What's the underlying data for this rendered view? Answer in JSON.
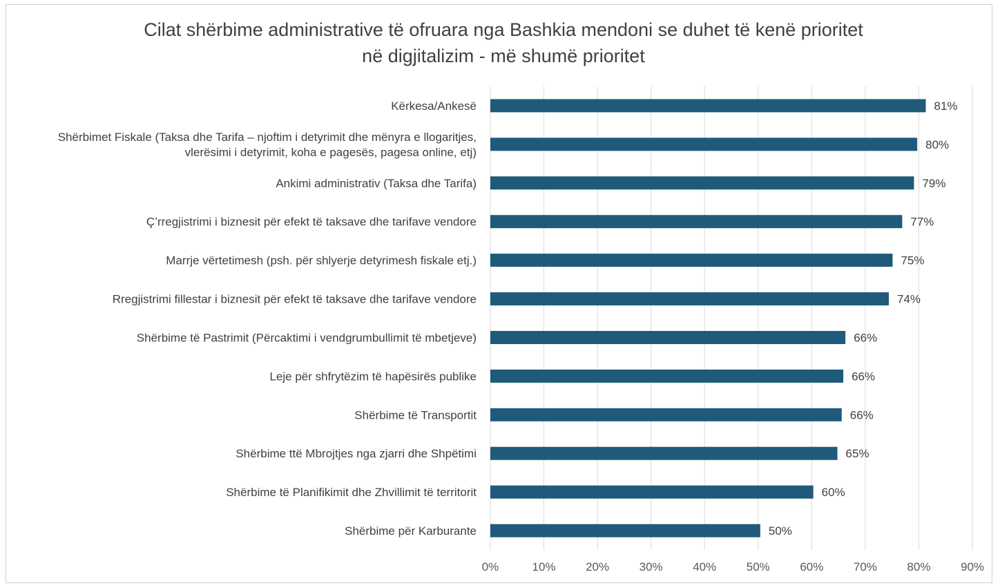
{
  "chart_data": {
    "type": "bar",
    "orientation": "horizontal",
    "title_lines": [
      "Cilat shërbime administrative të ofruara nga Bashkia mendoni se duhet të kenë prioritet",
      "në digjitalizim - më shumë prioritet"
    ],
    "categories": [
      [
        "Kërkesa/Ankesë"
      ],
      [
        "Shërbimet Fiskale (Taksa dhe Tarifa – njoftim i detyrimit dhe mënyra e llogaritjes,",
        "vlerësimi i detyrimit, koha e pagesës, pagesa online, etj)"
      ],
      [
        "Ankimi administrativ (Taksa dhe Tarifa)"
      ],
      [
        "Ç’rregjistrimi i biznesit për efekt të taksave dhe tarifave vendore"
      ],
      [
        "Marrje vërtetimesh (psh. për shlyerje detyrimesh fiskale etj.)"
      ],
      [
        "Rregjistrimi fillestar i biznesit për efekt të taksave dhe tarifave vendore"
      ],
      [
        "Shërbime të Pastrimit (Përcaktimi i vendgrumbullimit të mbetjeve)"
      ],
      [
        "Leje për shfrytëzim të hapësirës publike"
      ],
      [
        "Shërbime të Transportit"
      ],
      [
        "Shërbime ttë Mbrojtjes nga zjarri dhe Shpëtimi"
      ],
      [
        "Shërbime të Planifikimit dhe Zhvillimit të territorit"
      ],
      [
        "Shërbime për Karburante"
      ]
    ],
    "values": [
      81.3,
      79.7,
      79.1,
      76.9,
      75.1,
      74.4,
      66.3,
      65.9,
      65.6,
      64.8,
      60.3,
      50.4
    ],
    "data_labels": [
      "81%",
      "80%",
      "79%",
      "77%",
      "75%",
      "74%",
      "66%",
      "66%",
      "66%",
      "65%",
      "60%",
      "50%"
    ],
    "x_ticks": [
      "0%",
      "10%",
      "20%",
      "30%",
      "40%",
      "50%",
      "60%",
      "70%",
      "80%",
      "90%"
    ],
    "xlim": [
      0,
      90
    ],
    "grid": true,
    "legend": "none",
    "bar_color": "#1f5a7a",
    "grid_color": "#d9d9d9"
  }
}
